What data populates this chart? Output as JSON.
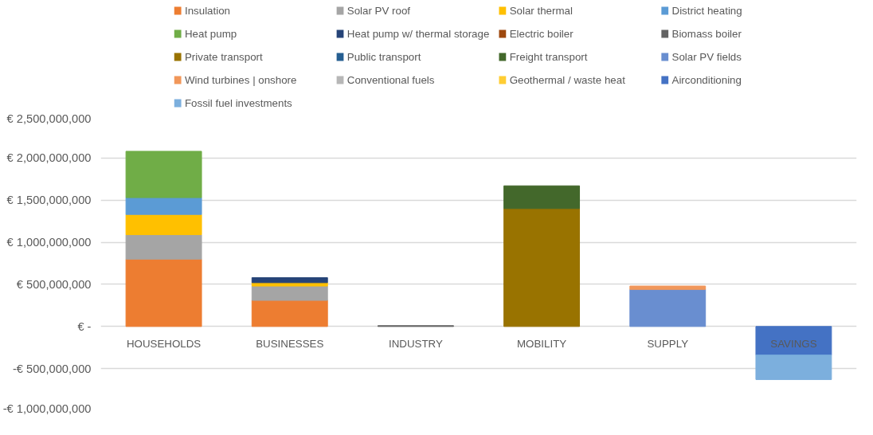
{
  "chart_data": {
    "type": "bar",
    "stacked": true,
    "categories": [
      "HOUSEHOLDS",
      "BUSINESSES",
      "INDUSTRY",
      "MOBILITY",
      "SUPPLY",
      "SAVINGS"
    ],
    "series": [
      {
        "name": "Insulation",
        "color": "#ed7d31",
        "values": [
          800000000,
          310000000,
          null,
          null,
          null,
          null
        ]
      },
      {
        "name": "Solar PV roof",
        "color": "#a5a5a5",
        "values": [
          290000000,
          170000000,
          null,
          null,
          null,
          null
        ]
      },
      {
        "name": "Solar thermal",
        "color": "#ffc000",
        "values": [
          240000000,
          40000000,
          null,
          null,
          null,
          null
        ]
      },
      {
        "name": "District heating",
        "color": "#5b9bd5",
        "values": [
          200000000,
          null,
          null,
          null,
          null,
          null
        ]
      },
      {
        "name": "Heat pump",
        "color": "#70ad47",
        "values": [
          550000000,
          null,
          null,
          null,
          null,
          null
        ]
      },
      {
        "name": "Heat pump w/ thermal storage",
        "color": "#264478",
        "values": [
          null,
          60000000,
          null,
          null,
          null,
          null
        ]
      },
      {
        "name": "Electric boiler",
        "color": "#9e480e",
        "values": [
          null,
          null,
          null,
          null,
          null,
          null
        ]
      },
      {
        "name": "Biomass boiler",
        "color": "#636363",
        "values": [
          null,
          null,
          10000000,
          null,
          null,
          null
        ]
      },
      {
        "name": "Private transport",
        "color": "#997300",
        "values": [
          null,
          null,
          null,
          1400000000,
          null,
          null
        ]
      },
      {
        "name": "Public transport",
        "color": "#255e91",
        "values": [
          null,
          null,
          null,
          null,
          null,
          null
        ]
      },
      {
        "name": "Freight transport",
        "color": "#43682b",
        "values": [
          null,
          null,
          null,
          270000000,
          null,
          null
        ]
      },
      {
        "name": "Solar PV fields",
        "color": "#698ed0",
        "values": [
          null,
          null,
          null,
          null,
          440000000,
          null
        ]
      },
      {
        "name": "Wind turbines | onshore",
        "color": "#f1975a",
        "values": [
          null,
          null,
          null,
          null,
          40000000,
          null
        ]
      },
      {
        "name": "Conventional fuels",
        "color": "#b7b7b7",
        "values": [
          null,
          null,
          null,
          null,
          null,
          null
        ]
      },
      {
        "name": "Geothermal / waste heat",
        "color": "#ffcd33",
        "values": [
          null,
          null,
          null,
          null,
          null,
          null
        ]
      },
      {
        "name": "Airconditioning",
        "color": "#4472c4",
        "values": [
          null,
          null,
          null,
          null,
          null,
          -340000000
        ]
      },
      {
        "name": "Fossil fuel investments",
        "color": "#7cafdd",
        "values": [
          null,
          null,
          null,
          null,
          null,
          -290000000
        ]
      }
    ],
    "ylim": [
      -1000000000,
      2500000000
    ],
    "yticks": [
      {
        "value": -1000000000,
        "label": "-€ 1,000,000,000"
      },
      {
        "value": -500000000,
        "label": "-€ 500,000,000"
      },
      {
        "value": 0,
        "label": "€ -"
      },
      {
        "value": 500000000,
        "label": "€ 500,000,000"
      },
      {
        "value": 1000000000,
        "label": "€ 1,000,000,000"
      },
      {
        "value": 1500000000,
        "label": "€ 1,500,000,000"
      },
      {
        "value": 2000000000,
        "label": "€ 2,000,000,000"
      },
      {
        "value": 2500000000,
        "label": "€ 2,500,000,000"
      }
    ],
    "grid": "y",
    "legend": "top"
  }
}
